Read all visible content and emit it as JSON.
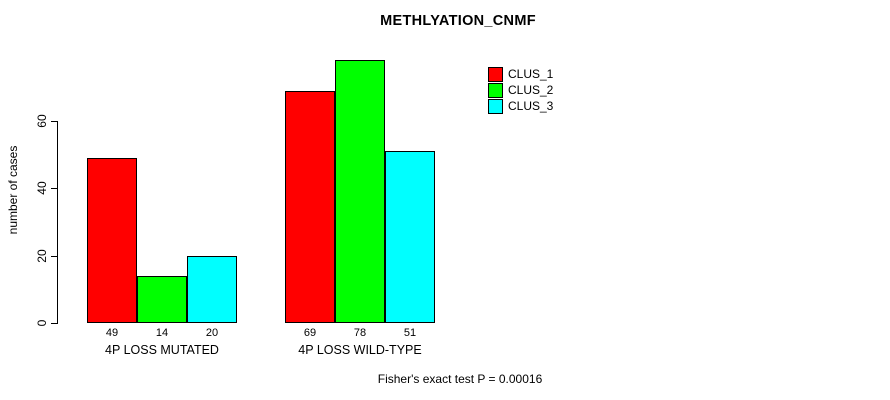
{
  "title": "METHLYATION_CNMF",
  "annotation": "Fisher's exact test P = 0.00016",
  "chart_data": {
    "type": "bar",
    "title": "METHLYATION_CNMF",
    "xlabel": "",
    "ylabel": "number of cases",
    "categories": [
      "4P LOSS MUTATED",
      "4P LOSS WILD-TYPE"
    ],
    "series": [
      {
        "name": "CLUS_1",
        "color": "#FF0000",
        "values": [
          49,
          69
        ]
      },
      {
        "name": "CLUS_2",
        "color": "#00FF00",
        "values": [
          14,
          78
        ]
      },
      {
        "name": "CLUS_3",
        "color": "#00FFFF",
        "values": [
          20,
          51
        ]
      }
    ],
    "bar_value_labels": [
      [
        49,
        14,
        20
      ],
      [
        69,
        78,
        51
      ]
    ],
    "yticks": [
      0,
      20,
      40,
      60
    ],
    "ylim": [
      0,
      80
    ],
    "grid": false,
    "legend_position": "top-right",
    "annotation": "Fisher's exact test P = 0.00016",
    "axis_color": "#000000",
    "bar_border_color": "#000000"
  }
}
